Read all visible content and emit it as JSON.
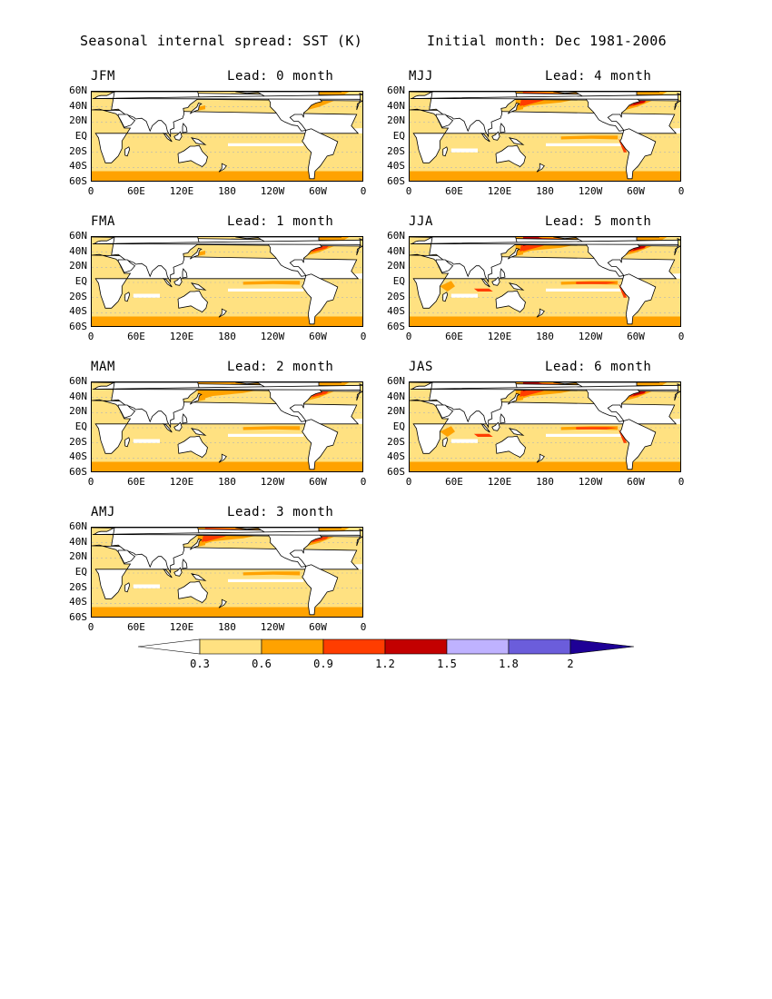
{
  "figure": {
    "title_left": "Seasonal internal spread: SST (K)",
    "title_right": "Initial month: Dec 1981-2006"
  },
  "panels": [
    {
      "season": "JFM",
      "lead": "Lead: 0 month",
      "intensity": 0
    },
    {
      "season": "FMA",
      "lead": "Lead: 1 month",
      "intensity": 1
    },
    {
      "season": "MAM",
      "lead": "Lead: 2 month",
      "intensity": 2
    },
    {
      "season": "AMJ",
      "lead": "Lead: 3 month",
      "intensity": 3
    },
    {
      "season": "MJJ",
      "lead": "Lead: 4 month",
      "intensity": 4
    },
    {
      "season": "JJA",
      "lead": "Lead: 5 month",
      "intensity": 5
    },
    {
      "season": "JAS",
      "lead": "Lead: 6 month",
      "intensity": 6
    }
  ],
  "axes": {
    "y_ticks": [
      "60N",
      "40N",
      "20N",
      "EQ",
      "20S",
      "40S",
      "60S"
    ],
    "x_ticks": [
      "0",
      "60E",
      "120E",
      "180",
      "120W",
      "60W",
      "0"
    ]
  },
  "colorbar": {
    "labels": [
      "0.3",
      "0.6",
      "0.9",
      "1.2",
      "1.5",
      "1.8",
      "2"
    ],
    "colors": [
      "#ffffff",
      "#ffe181",
      "#ffa200",
      "#ff3d00",
      "#c30000",
      "#bfb2ff",
      "#6b5ddb",
      "#1e0096"
    ]
  },
  "map_colors": {
    "ocean_low": "#ffe181",
    "ocean_mid": "#ffa200",
    "ocean_high": "#ff3d00",
    "ocean_max": "#c30000",
    "land": "#ffffff"
  }
}
